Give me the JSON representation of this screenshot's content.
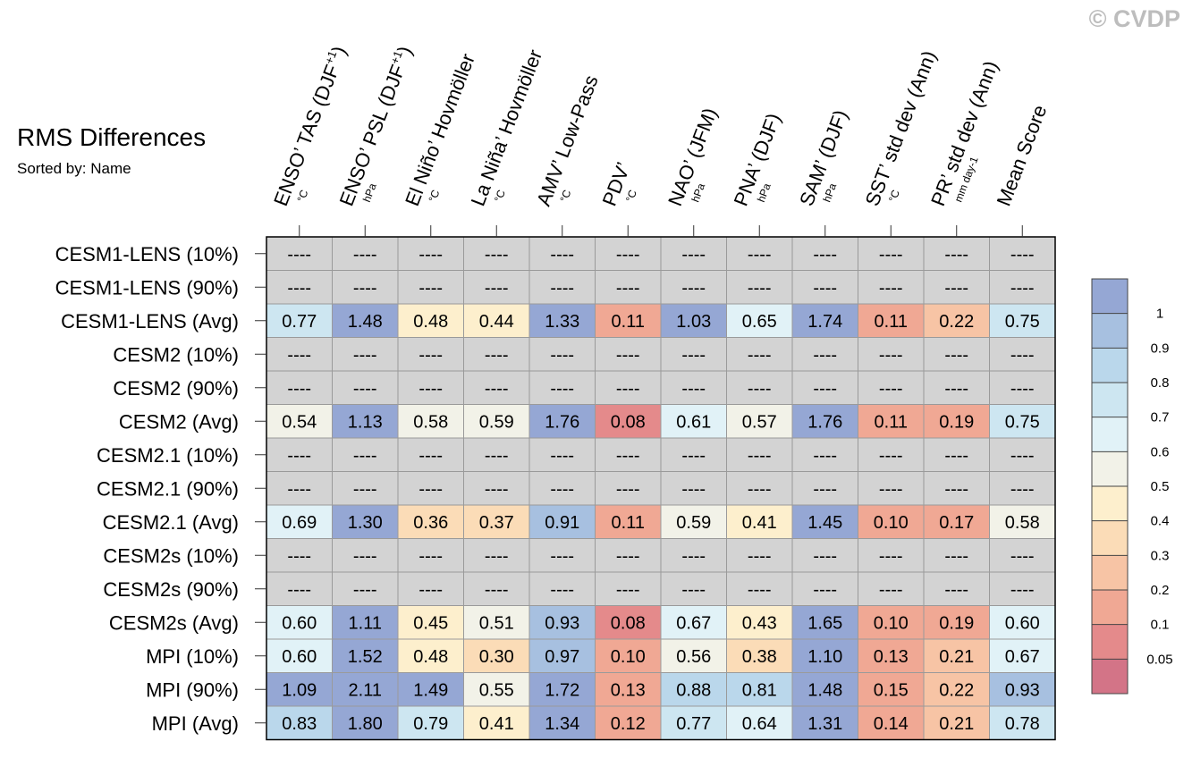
{
  "copyright": "© CVDP",
  "chart_data": {
    "type": "table",
    "title": "RMS Differences",
    "subtitle": "Sorted by: Name",
    "missing_label": "----",
    "columns": [
      {
        "label": "ENSO’ TAS (DJF",
        "sup": "+1",
        "tail": ")",
        "unit": "°C"
      },
      {
        "label": "ENSO’ PSL (DJF",
        "sup": "+1",
        "tail": ")",
        "unit": "hPa"
      },
      {
        "label": "El Niño’ Hovmöller",
        "sup": "",
        "tail": "",
        "unit": "°C"
      },
      {
        "label": "La Niña’ Hovmöller",
        "sup": "",
        "tail": "",
        "unit": "°C"
      },
      {
        "label": "AMV’ Low-Pass",
        "sup": "",
        "tail": "",
        "unit": "°C"
      },
      {
        "label": "PDV’",
        "sup": "",
        "tail": "",
        "unit": "°C"
      },
      {
        "label": "NAO’ (JFM)",
        "sup": "",
        "tail": "",
        "unit": "hPa"
      },
      {
        "label": "PNA’ (DJF)",
        "sup": "",
        "tail": "",
        "unit": "hPa"
      },
      {
        "label": "SAM’ (DJF)",
        "sup": "",
        "tail": "",
        "unit": "hPa"
      },
      {
        "label": "SST’ std dev (Ann)",
        "sup": "",
        "tail": "",
        "unit": "°C"
      },
      {
        "label": "PR’ std dev (Ann)",
        "sup": "",
        "tail": "",
        "unit": "mm day-1"
      },
      {
        "label": "Mean Score",
        "sup": "",
        "tail": "",
        "unit": ""
      }
    ],
    "rows": [
      {
        "label": "CESM1-LENS (10%)",
        "values": [
          null,
          null,
          null,
          null,
          null,
          null,
          null,
          null,
          null,
          null,
          null,
          null
        ]
      },
      {
        "label": "CESM1-LENS (90%)",
        "values": [
          null,
          null,
          null,
          null,
          null,
          null,
          null,
          null,
          null,
          null,
          null,
          null
        ]
      },
      {
        "label": "CESM1-LENS (Avg)",
        "values": [
          "0.77",
          "1.48",
          "0.48",
          "0.44",
          "1.33",
          "0.11",
          "1.03",
          "0.65",
          "1.74",
          "0.11",
          "0.22",
          "0.75"
        ]
      },
      {
        "label": "CESM2 (10%)",
        "values": [
          null,
          null,
          null,
          null,
          null,
          null,
          null,
          null,
          null,
          null,
          null,
          null
        ]
      },
      {
        "label": "CESM2 (90%)",
        "values": [
          null,
          null,
          null,
          null,
          null,
          null,
          null,
          null,
          null,
          null,
          null,
          null
        ]
      },
      {
        "label": "CESM2 (Avg)",
        "values": [
          "0.54",
          "1.13",
          "0.58",
          "0.59",
          "1.76",
          "0.08",
          "0.61",
          "0.57",
          "1.76",
          "0.11",
          "0.19",
          "0.75"
        ]
      },
      {
        "label": "CESM2.1 (10%)",
        "values": [
          null,
          null,
          null,
          null,
          null,
          null,
          null,
          null,
          null,
          null,
          null,
          null
        ]
      },
      {
        "label": "CESM2.1 (90%)",
        "values": [
          null,
          null,
          null,
          null,
          null,
          null,
          null,
          null,
          null,
          null,
          null,
          null
        ]
      },
      {
        "label": "CESM2.1 (Avg)",
        "values": [
          "0.69",
          "1.30",
          "0.36",
          "0.37",
          "0.91",
          "0.11",
          "0.59",
          "0.41",
          "1.45",
          "0.10",
          "0.17",
          "0.58"
        ]
      },
      {
        "label": "CESM2s (10%)",
        "values": [
          null,
          null,
          null,
          null,
          null,
          null,
          null,
          null,
          null,
          null,
          null,
          null
        ]
      },
      {
        "label": "CESM2s (90%)",
        "values": [
          null,
          null,
          null,
          null,
          null,
          null,
          null,
          null,
          null,
          null,
          null,
          null
        ]
      },
      {
        "label": "CESM2s (Avg)",
        "values": [
          "0.60",
          "1.11",
          "0.45",
          "0.51",
          "0.93",
          "0.08",
          "0.67",
          "0.43",
          "1.65",
          "0.10",
          "0.19",
          "0.60"
        ]
      },
      {
        "label": "MPI (10%)",
        "values": [
          "0.60",
          "1.52",
          "0.48",
          "0.30",
          "0.97",
          "0.10",
          "0.56",
          "0.38",
          "1.10",
          "0.13",
          "0.21",
          "0.67"
        ]
      },
      {
        "label": "MPI (90%)",
        "values": [
          "1.09",
          "2.11",
          "1.49",
          "0.55",
          "1.72",
          "0.13",
          "0.88",
          "0.81",
          "1.48",
          "0.15",
          "0.22",
          "0.93"
        ]
      },
      {
        "label": "MPI (Avg)",
        "values": [
          "0.83",
          "1.80",
          "0.79",
          "0.41",
          "1.34",
          "0.12",
          "0.77",
          "0.64",
          "1.31",
          "0.14",
          "0.21",
          "0.78"
        ]
      }
    ],
    "colorbar": {
      "levels": [
        "1",
        "0.9",
        "0.8",
        "0.7",
        "0.6",
        "0.5",
        "0.4",
        "0.3",
        "0.2",
        "0.1",
        "0.05"
      ],
      "colors": [
        "#95a7d4",
        "#a7c0e0",
        "#bad7eb",
        "#cde6f1",
        "#e1f2f7",
        "#f2f2e8",
        "#fdefcd",
        "#fbdcb7",
        "#f7c4a5",
        "#f0a894",
        "#e48a8b",
        "#d37487"
      ],
      "missing_color": "#d3d3d3"
    }
  }
}
